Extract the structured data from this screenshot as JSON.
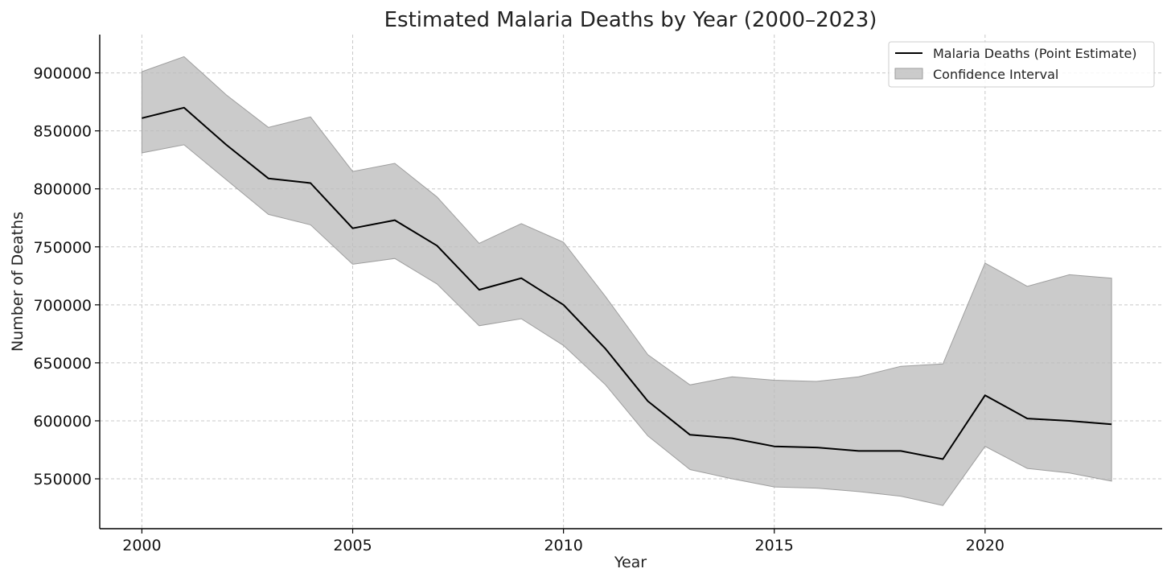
{
  "chart_data": {
    "type": "line",
    "title": "Estimated Malaria Deaths by Year (2000–2023)",
    "xlabel": "Year",
    "ylabel": "Number of Deaths",
    "xlim": [
      1999,
      2024.2
    ],
    "ylim": [
      507000,
      933000
    ],
    "grid": true,
    "legend_position": "top-right",
    "x": [
      2000,
      2001,
      2002,
      2003,
      2004,
      2005,
      2006,
      2007,
      2008,
      2009,
      2010,
      2011,
      2012,
      2013,
      2014,
      2015,
      2016,
      2017,
      2018,
      2019,
      2020,
      2021,
      2022,
      2023
    ],
    "x_ticks": [
      2000,
      2005,
      2010,
      2015,
      2020
    ],
    "y_ticks": [
      550000,
      600000,
      650000,
      700000,
      750000,
      800000,
      850000,
      900000
    ],
    "series": [
      {
        "name": "Malaria Deaths (Point Estimate)",
        "color": "#000000",
        "values": [
          861000,
          870000,
          838000,
          809000,
          805000,
          766000,
          773000,
          751000,
          713000,
          723000,
          700000,
          662000,
          617000,
          588000,
          585000,
          578000,
          577000,
          574000,
          574000,
          567000,
          622000,
          602000,
          600000,
          597000
        ]
      }
    ],
    "interval": {
      "name": "Confidence Interval",
      "color": "#bdbdbd",
      "lower": [
        831000,
        838000,
        808000,
        778000,
        769000,
        735000,
        740000,
        718000,
        682000,
        688000,
        665000,
        631000,
        587000,
        558000,
        550000,
        543000,
        542000,
        539000,
        535000,
        527000,
        578000,
        559000,
        555000,
        548000
      ],
      "upper": [
        901000,
        914000,
        881000,
        853000,
        862000,
        815000,
        822000,
        793000,
        753000,
        770000,
        754000,
        707000,
        657000,
        631000,
        638000,
        635000,
        634000,
        638000,
        647000,
        649000,
        736000,
        716000,
        726000,
        723000
      ]
    }
  }
}
